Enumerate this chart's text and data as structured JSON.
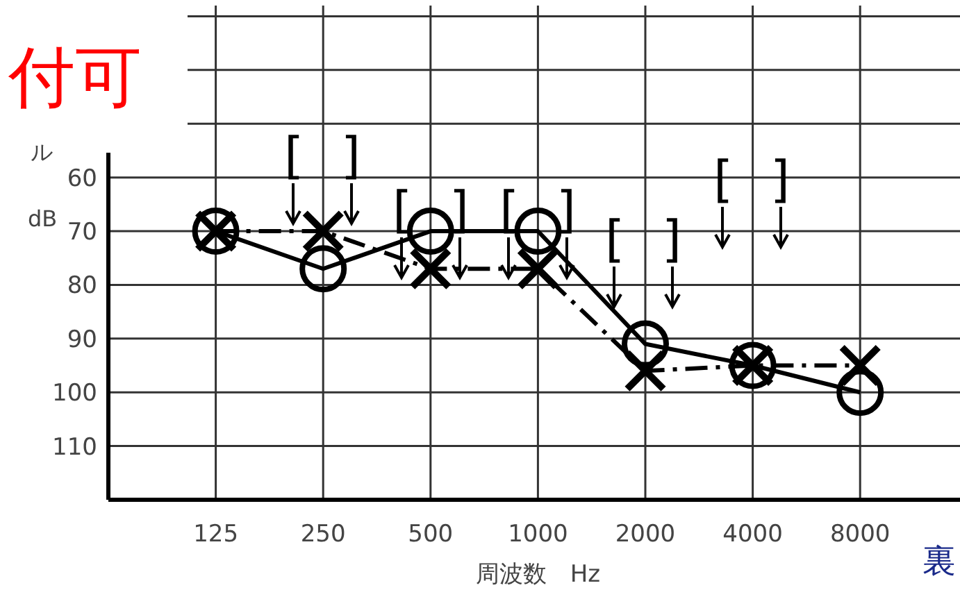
{
  "chart_data": {
    "type": "line",
    "xlabel": "周波数　Hz",
    "ylabel": "dB",
    "categories": [
      "125",
      "250",
      "500",
      "1000",
      "2000",
      "4000",
      "8000"
    ],
    "series": [
      {
        "color": "#000000",
        "values": [
          70,
          77,
          70,
          70,
          91,
          95,
          100
        ],
        "marker": "circle",
        "line_style": "solid"
      },
      {
        "color": "#000000",
        "values": [
          70,
          70,
          77,
          77,
          96,
          95,
          95
        ],
        "marker": "cross",
        "line_style": "dashed"
      }
    ],
    "ylim": [
      120,
      28
    ],
    "yticks": [
      {
        "value": 30,
        "label": null
      },
      {
        "value": 40,
        "label": null
      },
      {
        "value": 50,
        "label": null
      },
      60,
      70,
      80,
      90,
      100,
      110
    ],
    "grid": true,
    "annotations": [
      "[ ]",
      "[ ]",
      "[ ]",
      "[ ]",
      "[ ]",
      "付可",
      "ル",
      "裏"
    ]
  }
}
